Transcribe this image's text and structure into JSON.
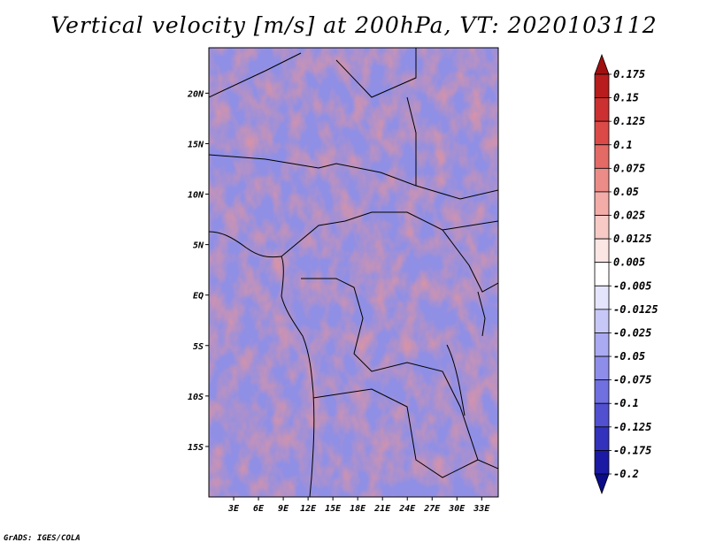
{
  "title": "Vertical velocity [m/s] at 200hPa, VT: 2020103112",
  "credit": "GrADS: IGES/COLA",
  "latitude_labels": [
    "20N",
    "15N",
    "10N",
    "5N",
    "EQ",
    "5S",
    "10S",
    "15S"
  ],
  "latitude_values": [
    20,
    15,
    10,
    5,
    0,
    -5,
    -10,
    -15
  ],
  "longitude_labels": [
    "3E",
    "6E",
    "9E",
    "12E",
    "15E",
    "18E",
    "21E",
    "24E",
    "27E",
    "30E",
    "33E"
  ],
  "longitude_values": [
    3,
    6,
    9,
    12,
    15,
    18,
    21,
    24,
    27,
    30,
    33
  ],
  "map_extent": {
    "lon_min": 0,
    "lon_max": 35,
    "lat_min": -20,
    "lat_max": 24.5
  },
  "colorbar": {
    "labels": [
      "0.175",
      "0.15",
      "0.125",
      "0.1",
      "0.075",
      "0.05",
      "0.025",
      "0.0125",
      "0.005",
      "-0.005",
      "-0.0125",
      "-0.025",
      "-0.05",
      "-0.075",
      "-0.1",
      "-0.125",
      "-0.175",
      "-0.2"
    ],
    "colors": [
      "#a01010",
      "#b81c1c",
      "#cc3030",
      "#dc4a48",
      "#e46a66",
      "#ec8c88",
      "#f4aca8",
      "#f8cac6",
      "#fce6e4",
      "#ffffff",
      "#e4e4fc",
      "#c8c8f8",
      "#aaaaf2",
      "#8e8eea",
      "#7070e0",
      "#5050d0",
      "#3232bc",
      "#1a1aa4",
      "#0c0c88"
    ]
  }
}
